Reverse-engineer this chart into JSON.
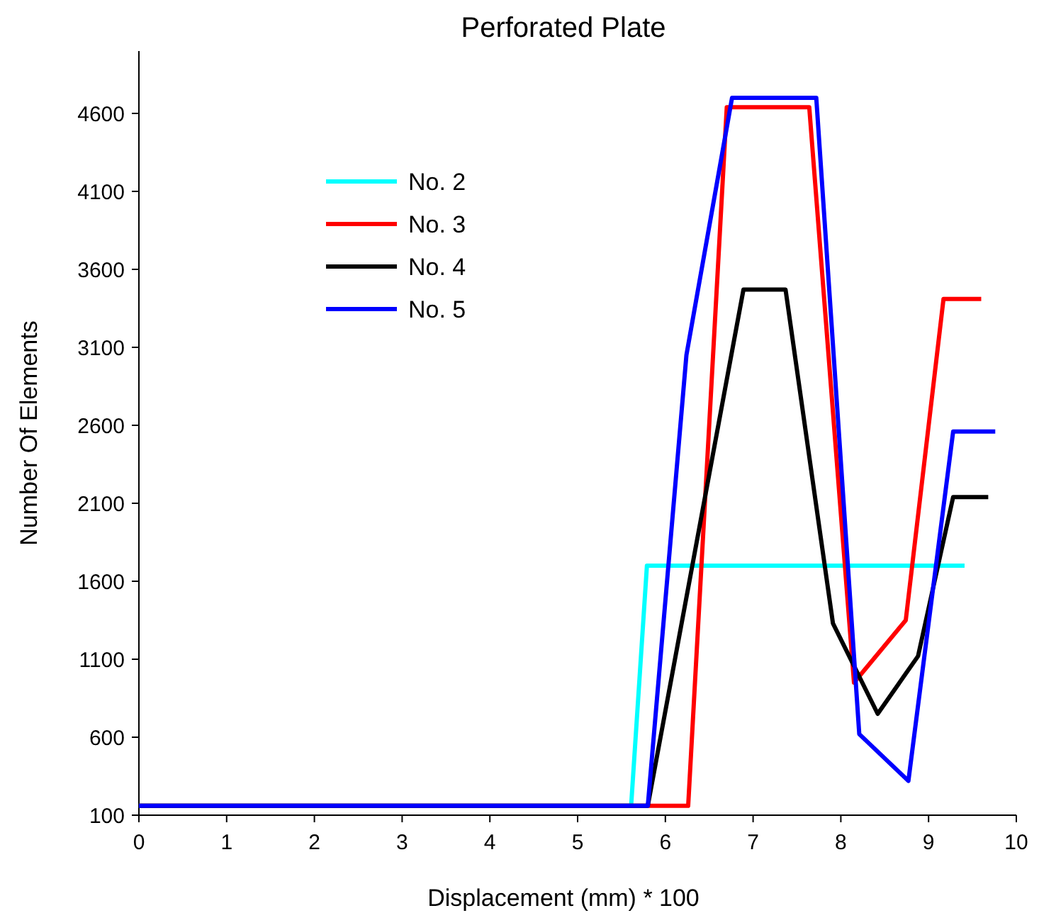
{
  "chart_data": {
    "type": "line",
    "title": "Perforated Plate",
    "xlabel": "Displacement (mm) * 100",
    "ylabel": "Number Of Elements",
    "xlim": [
      0,
      10
    ],
    "ylim": [
      100,
      5000
    ],
    "xticks": [
      0,
      1,
      2,
      3,
      4,
      5,
      6,
      7,
      8,
      9,
      10
    ],
    "yticks": [
      100,
      600,
      1100,
      1600,
      2100,
      2600,
      3100,
      3600,
      4100,
      4600
    ],
    "grid": false,
    "legend": "top left",
    "marker": "none",
    "line_style": "solid",
    "series": [
      {
        "name": "No. 2",
        "color": "#00ffff",
        "x": [
          0,
          5.61,
          5.79,
          9.41
        ],
        "values": [
          160,
          160,
          1700,
          1700
        ]
      },
      {
        "name": "No. 3",
        "color": "#ff0000",
        "x": [
          0,
          6.26,
          6.7,
          7.64,
          8.15,
          8.74,
          9.17,
          9.6
        ],
        "values": [
          160,
          160,
          4640,
          4640,
          950,
          1350,
          3410,
          3410
        ]
      },
      {
        "name": "No. 4",
        "color": "#000000",
        "x": [
          0,
          5.8,
          6.89,
          7.37,
          7.91,
          8.42,
          8.88,
          9.28,
          9.68
        ],
        "values": [
          160,
          160,
          3470,
          3470,
          1330,
          750,
          1120,
          2140,
          2140
        ]
      },
      {
        "name": "No. 5",
        "color": "#0000ff",
        "x": [
          0,
          5.8,
          6.24,
          6.76,
          7.72,
          8.21,
          8.77,
          9.28,
          9.76
        ],
        "values": [
          160,
          160,
          3050,
          4700,
          4700,
          620,
          320,
          2560,
          2560
        ]
      }
    ]
  }
}
